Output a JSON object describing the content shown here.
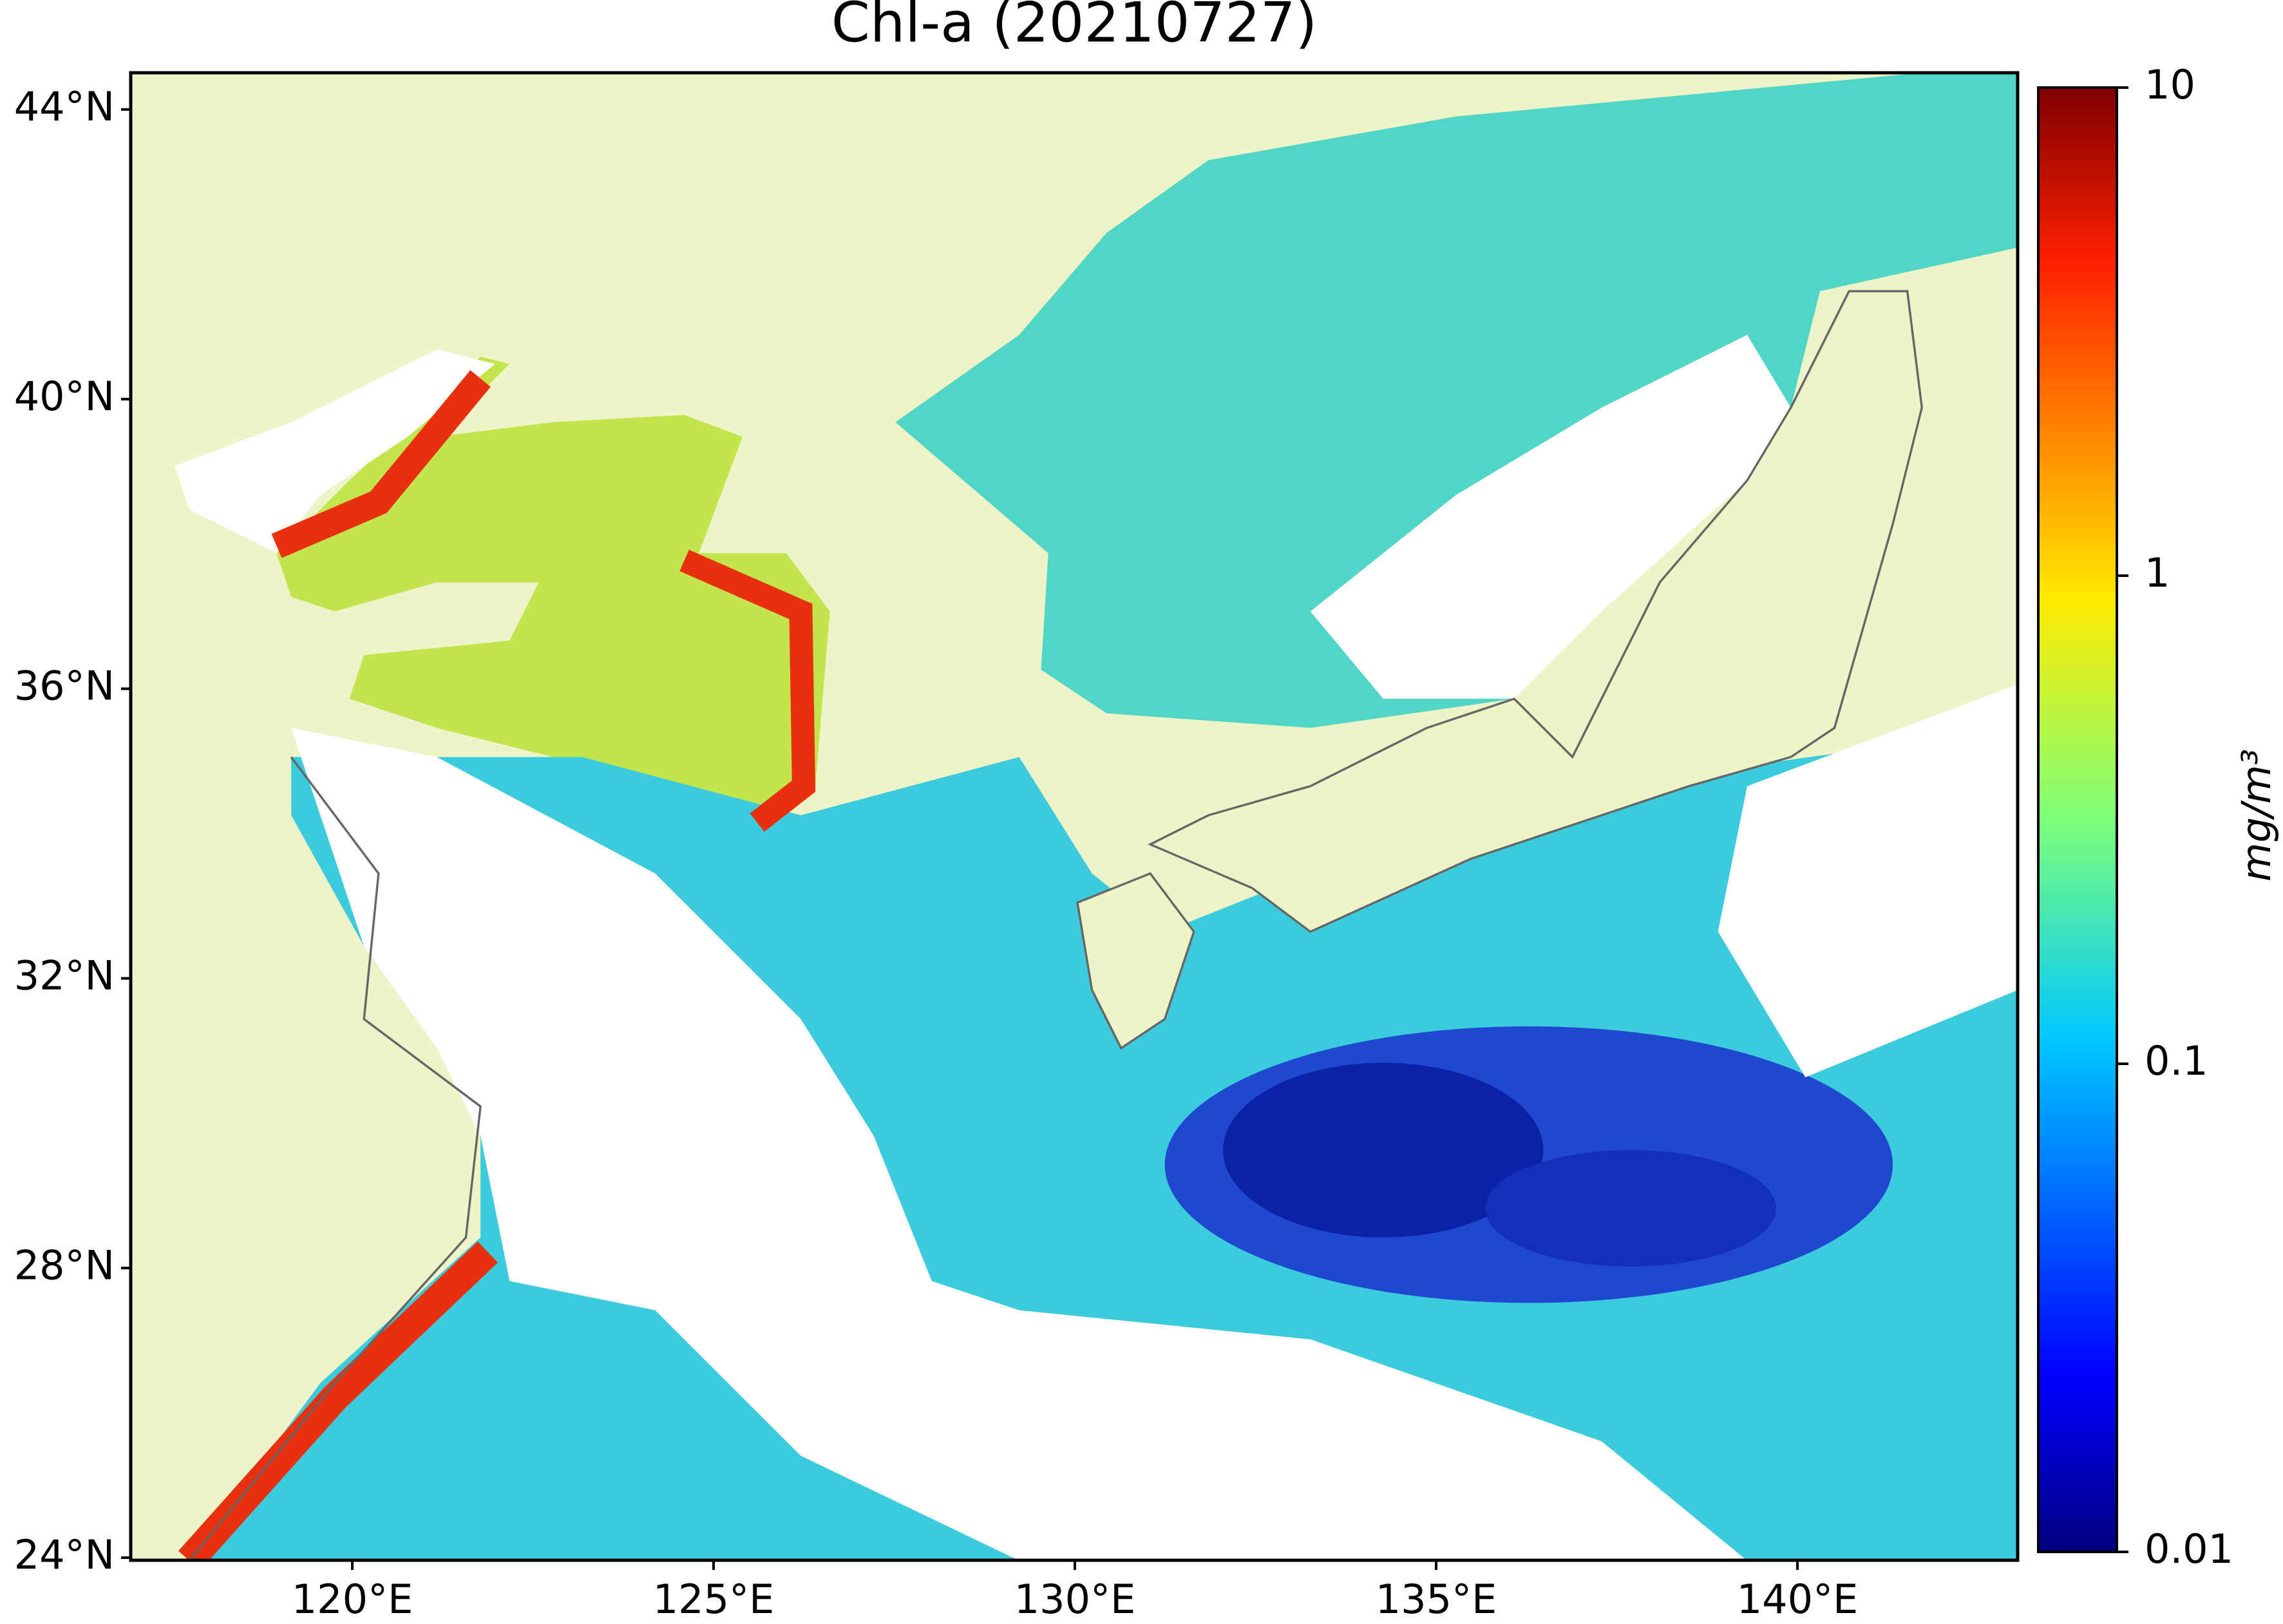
{
  "title": "Chl-a (20210727)",
  "map": {
    "lat_ticks": [
      "44°N",
      "40°N",
      "36°N",
      "32°N",
      "28°N",
      "24°N"
    ],
    "lon_ticks": [
      "120°E",
      "125°E",
      "130°E",
      "135°E",
      "140°E"
    ]
  },
  "colorbar": {
    "label": "mg/m³",
    "ticks": [
      "10",
      "1",
      "0.1",
      "0.01"
    ]
  }
}
